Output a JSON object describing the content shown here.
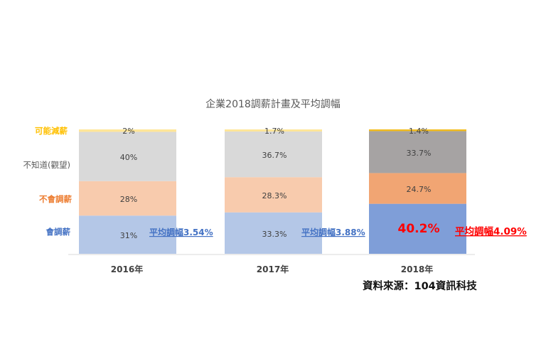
{
  "chart_data": {
    "type": "bar",
    "stacked": true,
    "percent_stacked": true,
    "title": "企業2018調薪計畫及平均調幅",
    "categories": [
      "2016年",
      "2017年",
      "2018年"
    ],
    "series": [
      {
        "name": "會調薪",
        "values": [
          31,
          33.3,
          40.2
        ],
        "labels": [
          "31%",
          "33.3%",
          "40.2%"
        ],
        "colors": [
          "#b4c7e7",
          "#b4c7e7",
          "#7f9ed8"
        ]
      },
      {
        "name": "不會調薪",
        "values": [
          28,
          28.3,
          24.7
        ],
        "labels": [
          "28%",
          "28.3%",
          "24.7%"
        ],
        "colors": [
          "#f8cbad",
          "#f8cbad",
          "#f1a573"
        ]
      },
      {
        "name": "不知道(觀望)",
        "values": [
          40,
          36.7,
          33.7
        ],
        "labels": [
          "40%",
          "36.7%",
          "33.7%"
        ],
        "colors": [
          "#d9d9d9",
          "#d9d9d9",
          "#a6a3a3"
        ]
      },
      {
        "name": "可能減薪",
        "values": [
          2,
          1.7,
          1.4
        ],
        "labels": [
          "2%",
          "1.7%",
          "1.4%"
        ],
        "colors": [
          "#ffe699",
          "#ffe699",
          "#f2bb1c"
        ]
      }
    ],
    "legend_colors": [
      "#4472c4",
      "#ed7d31",
      "#595959",
      "#ffc000"
    ],
    "legend_placement": "left",
    "annotations": [
      "平均調幅3.54%",
      "平均調幅3.88%",
      "平均調幅4.09%"
    ],
    "annotation_colors": [
      "#4472c4",
      "#4472c4",
      "#ff0000"
    ],
    "highlight_label_color": "#ff0000",
    "source": "資料來源：104資訊科技",
    "grid": false
  }
}
